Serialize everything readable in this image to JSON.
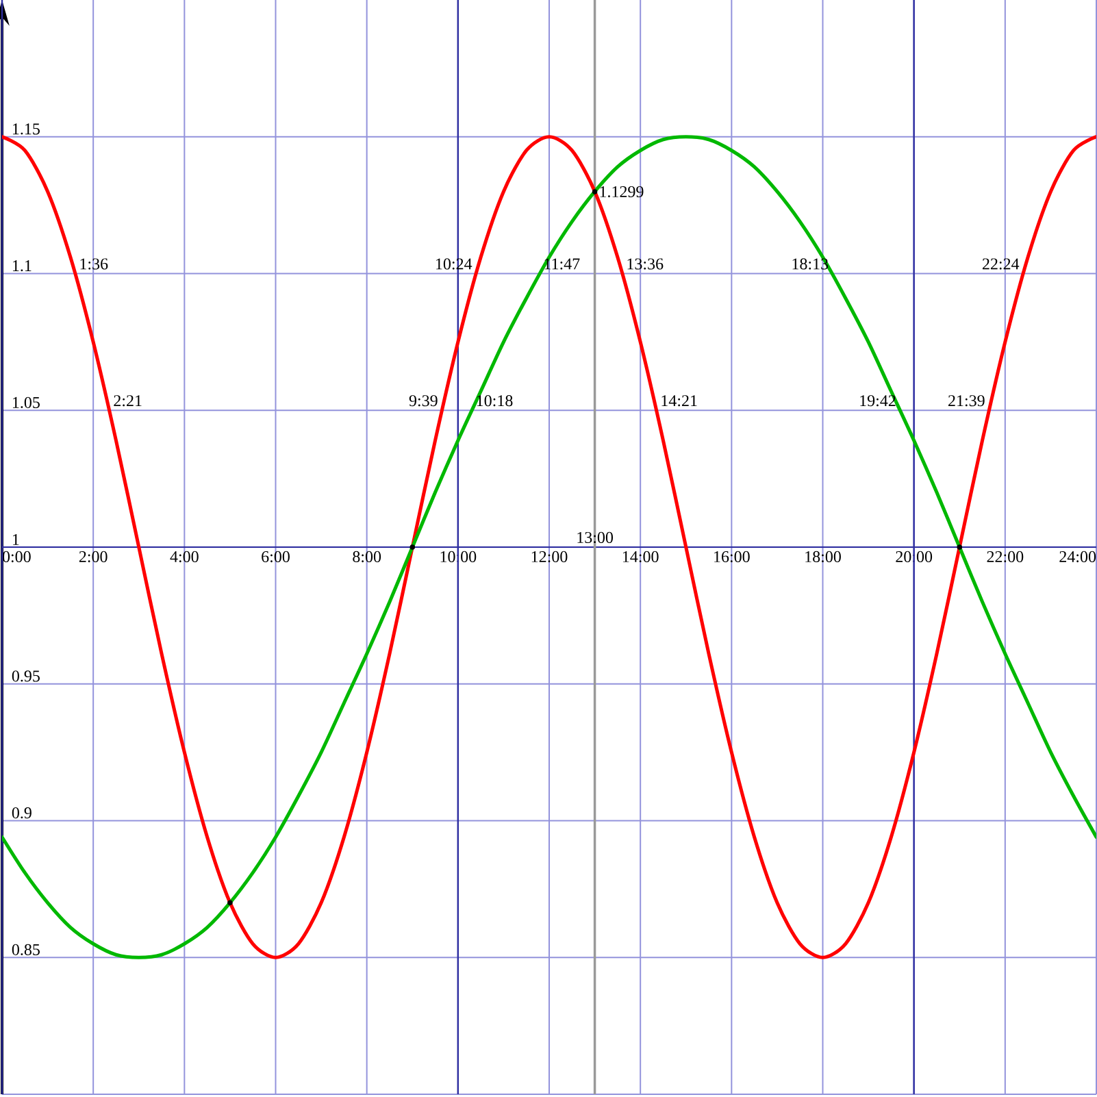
{
  "chart_data": {
    "type": "line",
    "x": [
      0,
      0.5,
      1,
      1.5,
      2,
      2.5,
      3,
      3.5,
      4,
      4.5,
      5,
      5.5,
      6,
      6.5,
      7,
      7.5,
      8,
      8.5,
      9,
      9.5,
      10,
      10.5,
      11,
      11.5,
      12,
      12.5,
      13,
      13.5,
      14,
      14.5,
      15,
      15.5,
      16,
      16.5,
      17,
      17.5,
      18,
      18.5,
      19,
      19.5,
      20,
      20.5,
      21,
      21.5,
      22,
      22.5,
      23,
      23.5,
      24
    ],
    "series": [
      {
        "color": "#ff0000",
        "values": [
          1.15,
          1.145,
          1.13,
          1.106,
          1.075,
          1.039,
          1,
          0.961,
          0.925,
          0.894,
          0.87,
          0.855,
          0.85,
          0.855,
          0.87,
          0.894,
          0.925,
          0.961,
          1,
          1.039,
          1.075,
          1.106,
          1.13,
          1.145,
          1.15,
          1.145,
          1.13,
          1.106,
          1.075,
          1.039,
          1,
          0.961,
          0.925,
          0.894,
          0.87,
          0.855,
          0.85,
          0.855,
          0.87,
          0.894,
          0.925,
          0.961,
          1,
          1.039,
          1.075,
          1.106,
          1.13,
          1.145,
          1.15
        ]
      },
      {
        "color": "#00b800",
        "values": [
          0.894,
          0.881,
          0.87,
          0.861,
          0.855,
          0.851,
          0.85,
          0.851,
          0.855,
          0.861,
          0.87,
          0.881,
          0.894,
          0.909,
          0.925,
          0.943,
          0.961,
          0.98,
          1,
          1.02,
          1.039,
          1.057,
          1.075,
          1.091,
          1.106,
          1.119,
          1.13,
          1.139,
          1.145,
          1.149,
          1.15,
          1.149,
          1.145,
          1.139,
          1.13,
          1.119,
          1.106,
          1.091,
          1.075,
          1.057,
          1.039,
          1.02,
          1,
          0.98,
          0.961,
          0.943,
          0.925,
          0.909,
          0.894
        ]
      },
      {
        "type": "scatter",
        "marker": "circle",
        "color": "#000000",
        "x": [
          5,
          9,
          13,
          21
        ],
        "values": [
          0.87,
          1,
          1.1299,
          1
        ]
      }
    ],
    "xlim": [
      0,
      24
    ],
    "ylim": [
      0.8,
      1.2
    ],
    "xticks": [
      {
        "value": 0,
        "label": "0:00"
      },
      {
        "value": 2,
        "label": "2:00"
      },
      {
        "value": 4,
        "label": "4:00"
      },
      {
        "value": 6,
        "label": "6:00"
      },
      {
        "value": 8,
        "label": "8:00"
      },
      {
        "value": 10,
        "label": "10:00"
      },
      {
        "value": 12,
        "label": "12:00"
      },
      {
        "value": 14,
        "label": "14:00"
      },
      {
        "value": 16,
        "label": "16:00"
      },
      {
        "value": 18,
        "label": "18:00"
      },
      {
        "value": 20,
        "label": "20:00"
      },
      {
        "value": 22,
        "label": "22:00"
      },
      {
        "value": 24,
        "label": "24:00"
      }
    ],
    "yticks": [
      {
        "value": 0.8,
        "label": null
      },
      0.85,
      0.9,
      0.95,
      1,
      1.05,
      1.1,
      1.15
    ],
    "grid": true,
    "ref_lines": [
      {
        "axis": "x",
        "value": 13,
        "label": "13:00",
        "color": "#999999"
      }
    ],
    "annotations": [
      {
        "text": "1:36",
        "x": 1.6,
        "y": 1.1
      },
      {
        "text": "2:21",
        "x": 2.35,
        "y": 1.05
      },
      {
        "text": "9:39",
        "x": 9.65,
        "y": 1.05
      },
      {
        "text": "10:18",
        "x": 10.3,
        "y": 1.05
      },
      {
        "text": "10:24",
        "x": 10.4,
        "y": 1.1
      },
      {
        "text": "11:47",
        "x": 11.783,
        "y": 1.1
      },
      {
        "text": "1.1299",
        "x": 13,
        "y": 1.1299
      },
      {
        "text": "13:36",
        "x": 13.6,
        "y": 1.1
      },
      {
        "text": "14:21",
        "x": 14.35,
        "y": 1.05
      },
      {
        "text": "18:13",
        "x": 18.217,
        "y": 1.1
      },
      {
        "text": "19:42",
        "x": 19.7,
        "y": 1.05
      },
      {
        "text": "21:39",
        "x": 21.65,
        "y": 1.05
      },
      {
        "text": "22:24",
        "x": 22.4,
        "y": 1.1
      }
    ]
  }
}
